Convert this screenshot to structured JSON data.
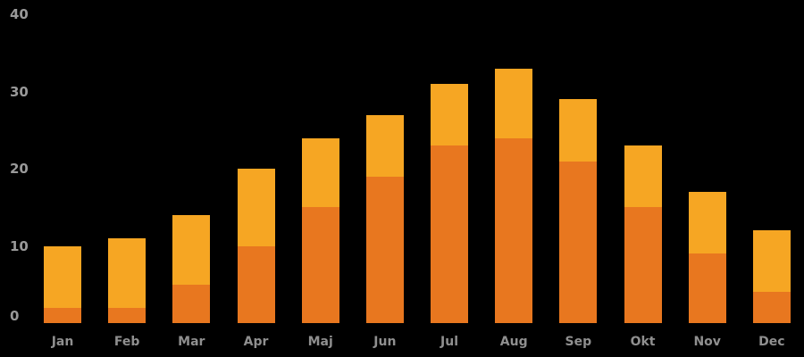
{
  "chart_data": {
    "type": "bar",
    "subtype": "stacked-column",
    "title": "",
    "xlabel": "",
    "ylabel": "",
    "categories": [
      "Jan",
      "Feb",
      "Mar",
      "Apr",
      "Maj",
      "Jun",
      "Jul",
      "Aug",
      "Sep",
      "Okt",
      "Nov",
      "Dec"
    ],
    "series": [
      {
        "name": "lower-dark-orange-segment",
        "color": "#E8771F",
        "values": [
          2,
          2,
          5,
          10,
          15,
          19,
          23,
          24,
          21,
          15,
          9,
          4
        ]
      },
      {
        "name": "upper-light-orange-segment",
        "color": "#F6A623",
        "values": [
          8,
          9,
          9,
          10,
          9,
          8,
          8,
          9,
          8,
          8,
          8,
          8
        ]
      }
    ],
    "bar_totals": [
      10,
      11,
      14,
      20,
      24,
      27,
      31,
      33,
      29,
      23,
      17,
      12
    ],
    "ylim": [
      0,
      40
    ],
    "yticks": [
      0,
      10,
      20,
      30,
      40
    ],
    "grid": false,
    "legend": "none",
    "background": "#000000",
    "tick_label_color": "#999999",
    "category_label_color": "#8f8f8f"
  }
}
